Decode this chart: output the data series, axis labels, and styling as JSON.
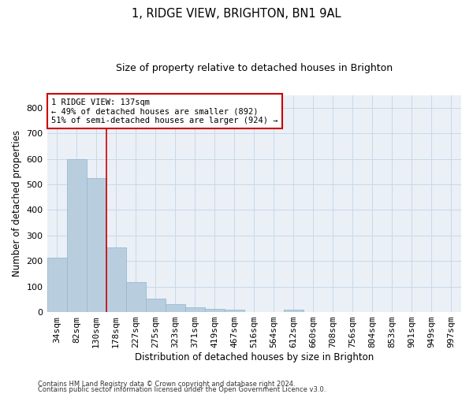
{
  "title1": "1, RIDGE VIEW, BRIGHTON, BN1 9AL",
  "title2": "Size of property relative to detached houses in Brighton",
  "xlabel": "Distribution of detached houses by size in Brighton",
  "ylabel": "Number of detached properties",
  "categories": [
    "34sqm",
    "82sqm",
    "130sqm",
    "178sqm",
    "227sqm",
    "275sqm",
    "323sqm",
    "371sqm",
    "419sqm",
    "467sqm",
    "516sqm",
    "564sqm",
    "612sqm",
    "660sqm",
    "708sqm",
    "756sqm",
    "804sqm",
    "853sqm",
    "901sqm",
    "949sqm",
    "997sqm"
  ],
  "values": [
    213,
    600,
    525,
    253,
    118,
    53,
    30,
    18,
    14,
    9,
    0,
    0,
    9,
    0,
    0,
    0,
    0,
    0,
    0,
    0,
    0
  ],
  "bar_color": "#b8cedf",
  "bar_edgecolor": "#9ab8d0",
  "bar_linewidth": 0.6,
  "vline_color": "#cc0000",
  "vline_linewidth": 1.2,
  "ylim": [
    0,
    850
  ],
  "yticks": [
    0,
    100,
    200,
    300,
    400,
    500,
    600,
    700,
    800
  ],
  "annotation_text": "1 RIDGE VIEW: 137sqm\n← 49% of detached houses are smaller (892)\n51% of semi-detached houses are larger (924) →",
  "annotation_box_color": "#ffffff",
  "annotation_box_edgecolor": "#cc0000",
  "annotation_fontsize": 7.5,
  "grid_color": "#c8d8e8",
  "bg_color": "#eaf0f6",
  "footer1": "Contains HM Land Registry data © Crown copyright and database right 2024.",
  "footer2": "Contains public sector information licensed under the Open Government Licence v3.0."
}
